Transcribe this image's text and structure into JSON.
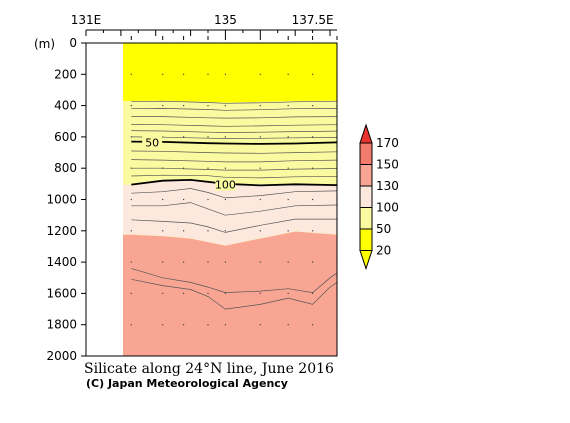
{
  "chart_data": {
    "type": "contour-section",
    "title": "Silicate along 24°N line, June 2016",
    "credit": "(C) Japan Meteorological Agency",
    "ylabel": "(m)",
    "x_ticks": [
      {
        "value": 131,
        "label": "131E"
      },
      {
        "value": 135,
        "label": "135"
      },
      {
        "value": 137.5,
        "label": "137.5E"
      }
    ],
    "xlim": [
      131,
      138.2
    ],
    "y_ticks": [
      0,
      200,
      400,
      600,
      800,
      1000,
      1200,
      1400,
      1600,
      1800,
      2000
    ],
    "ylim": [
      0,
      2000
    ],
    "land_xlim": [
      131,
      132.3
    ],
    "station_lons": [
      132.3,
      133.2,
      133.8,
      134.5,
      135.0,
      136.0,
      136.8,
      137.5,
      138.2
    ],
    "sample_depths": [
      0,
      200,
      400,
      600,
      800,
      1000,
      1200,
      1400,
      1600,
      1800
    ],
    "colorbar": {
      "levels": [
        20,
        50,
        100,
        130,
        150,
        170
      ],
      "labels": [
        "170",
        "150",
        "130",
        "100",
        "50",
        "20"
      ],
      "colors": [
        "#ffff00",
        "#fafaa0",
        "#fde8de",
        "#f9a594",
        "#f37b6d",
        "#e8332f"
      ]
    },
    "contour_labels": [
      {
        "text": "50",
        "lon": 132.9,
        "depth": 635
      },
      {
        "text": "100",
        "lon": 135.0,
        "depth": 905
      }
    ],
    "bold_contours": [
      {
        "level": 50,
        "points": [
          [
            132.3,
            630
          ],
          [
            133.2,
            632
          ],
          [
            134.5,
            640
          ],
          [
            135.0,
            642
          ],
          [
            136.0,
            645
          ],
          [
            137.0,
            642
          ],
          [
            138.2,
            635
          ]
        ]
      },
      {
        "level": 100,
        "points": [
          [
            132.3,
            905
          ],
          [
            133.2,
            880
          ],
          [
            134.0,
            875
          ],
          [
            135.0,
            900
          ],
          [
            136.0,
            910
          ],
          [
            137.0,
            903
          ],
          [
            138.2,
            908
          ]
        ]
      }
    ],
    "region_boundaries": [
      {
        "from": 50,
        "points": [
          [
            132.3,
            370
          ],
          [
            133.2,
            368
          ],
          [
            134.5,
            375
          ],
          [
            135.0,
            380
          ],
          [
            136.0,
            375
          ],
          [
            137.0,
            370
          ],
          [
            138.2,
            368
          ]
        ]
      },
      {
        "from": 100,
        "points": [
          [
            132.3,
            905
          ],
          [
            133.2,
            880
          ],
          [
            134.0,
            875
          ],
          [
            135.0,
            900
          ],
          [
            136.0,
            910
          ],
          [
            137.0,
            903
          ],
          [
            138.2,
            908
          ]
        ]
      },
      {
        "from": 130,
        "points": [
          [
            132.3,
            1225
          ],
          [
            133.2,
            1235
          ],
          [
            134.0,
            1250
          ],
          [
            135.0,
            1295
          ],
          [
            136.0,
            1250
          ],
          [
            137.0,
            1205
          ],
          [
            138.2,
            1225
          ]
        ]
      }
    ],
    "thin_contours": [
      [
        [
          132.3,
          375
        ],
        [
          133.2,
          372
        ],
        [
          134.5,
          380
        ],
        [
          135.0,
          385
        ],
        [
          136.0,
          382
        ],
        [
          137.0,
          376
        ],
        [
          138.2,
          372
        ]
      ],
      [
        [
          132.3,
          420
        ],
        [
          133.2,
          418
        ],
        [
          134.5,
          425
        ],
        [
          135.0,
          430
        ],
        [
          136.0,
          426
        ],
        [
          137.0,
          420
        ],
        [
          138.2,
          418
        ]
      ],
      [
        [
          132.3,
          470
        ],
        [
          133.2,
          470
        ],
        [
          134.5,
          478
        ],
        [
          135.0,
          480
        ],
        [
          136.0,
          478
        ],
        [
          137.0,
          472
        ],
        [
          138.2,
          470
        ]
      ],
      [
        [
          132.3,
          520
        ],
        [
          133.2,
          522
        ],
        [
          134.5,
          530
        ],
        [
          135.0,
          532
        ],
        [
          136.0,
          530
        ],
        [
          137.0,
          525
        ],
        [
          138.2,
          522
        ]
      ],
      [
        [
          132.3,
          560
        ],
        [
          133.2,
          562
        ],
        [
          134.5,
          570
        ],
        [
          135.0,
          572
        ],
        [
          136.0,
          570
        ],
        [
          137.0,
          566
        ],
        [
          138.2,
          563
        ]
      ],
      [
        [
          132.3,
          600
        ],
        [
          133.2,
          602
        ],
        [
          134.5,
          608
        ],
        [
          135.0,
          610
        ],
        [
          136.0,
          609
        ],
        [
          137.0,
          606
        ],
        [
          138.2,
          603
        ]
      ],
      [
        [
          132.3,
          690
        ],
        [
          133.2,
          692
        ],
        [
          134.5,
          700
        ],
        [
          135.0,
          703
        ],
        [
          136.0,
          705
        ],
        [
          137.0,
          700
        ],
        [
          138.2,
          695
        ]
      ],
      [
        [
          132.3,
          745
        ],
        [
          133.2,
          748
        ],
        [
          134.5,
          756
        ],
        [
          135.0,
          760
        ],
        [
          136.0,
          760
        ],
        [
          137.0,
          752
        ],
        [
          138.2,
          748
        ]
      ],
      [
        [
          132.3,
          800
        ],
        [
          133.2,
          800
        ],
        [
          134.5,
          808
        ],
        [
          135.0,
          812
        ],
        [
          136.0,
          812
        ],
        [
          137.0,
          806
        ],
        [
          138.2,
          802
        ]
      ],
      [
        [
          132.3,
          850
        ],
        [
          133.2,
          845
        ],
        [
          134.5,
          848
        ],
        [
          135.0,
          858
        ],
        [
          136.0,
          862
        ],
        [
          137.0,
          855
        ],
        [
          138.2,
          852
        ]
      ],
      [
        [
          132.3,
          960
        ],
        [
          133.2,
          950
        ],
        [
          134.0,
          930
        ],
        [
          134.5,
          955
        ],
        [
          135.0,
          990
        ],
        [
          136.0,
          975
        ],
        [
          137.0,
          950
        ],
        [
          138.2,
          945
        ]
      ],
      [
        [
          132.3,
          1040
        ],
        [
          133.2,
          1040
        ],
        [
          134.0,
          1020
        ],
        [
          134.5,
          1060
        ],
        [
          135.0,
          1100
        ],
        [
          136.0,
          1075
        ],
        [
          137.0,
          1040
        ],
        [
          138.2,
          1035
        ]
      ],
      [
        [
          132.3,
          1130
        ],
        [
          133.2,
          1140
        ],
        [
          134.0,
          1150
        ],
        [
          134.5,
          1175
        ],
        [
          135.0,
          1210
        ],
        [
          136.0,
          1165
        ],
        [
          137.0,
          1125
        ],
        [
          138.2,
          1125
        ]
      ],
      [
        [
          132.3,
          1440
        ],
        [
          133.2,
          1500
        ],
        [
          134.0,
          1530
        ],
        [
          134.5,
          1560
        ],
        [
          135.0,
          1595
        ],
        [
          136.0,
          1585
        ],
        [
          136.8,
          1570
        ],
        [
          137.5,
          1595
        ],
        [
          138.0,
          1500
        ],
        [
          138.2,
          1470
        ]
      ],
      [
        [
          132.3,
          1510
        ],
        [
          133.2,
          1550
        ],
        [
          134.0,
          1575
        ],
        [
          134.5,
          1620
        ],
        [
          135.0,
          1700
        ],
        [
          136.0,
          1670
        ],
        [
          136.8,
          1630
        ],
        [
          137.5,
          1670
        ],
        [
          138.0,
          1560
        ],
        [
          138.2,
          1530
        ]
      ]
    ]
  }
}
